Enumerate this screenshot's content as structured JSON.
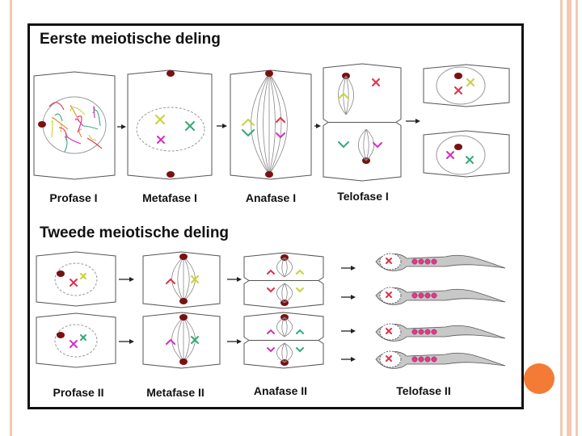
{
  "theme": {
    "accent": "#f37b35",
    "stripe": "#f3c9b3",
    "cell_outline": "#555555",
    "nucleus_border": "#999999",
    "centrosome": "#7a1010",
    "chromosome_red": "#e0304a",
    "chromosome_green": "#35a877",
    "chromosome_yellow": "#c8d23c",
    "chromosome_magenta": "#d030c0",
    "sperm_body": "#c8c8c8",
    "sperm_dots": "#e03a8a"
  },
  "section1": {
    "title": "Eerste meiotische deling",
    "stages": [
      "Profase I",
      "Metafase I",
      "Anafase I",
      "Telofase I"
    ]
  },
  "section2": {
    "title": "Tweede meiotische deling",
    "stages": [
      "Profase II",
      "Metafase II",
      "Anafase II",
      "Telofase II"
    ]
  }
}
